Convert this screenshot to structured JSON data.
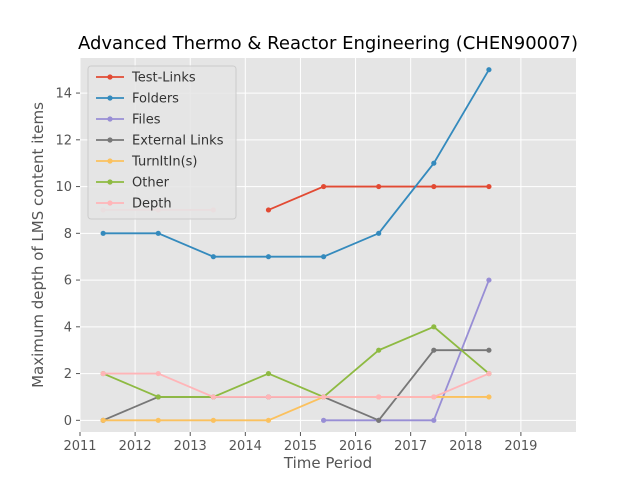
{
  "chart_data": {
    "type": "line",
    "title": "Advanced Thermo & Reactor Engineering (CHEN90007)",
    "xlabel": "Time Period",
    "ylabel": "Maximum depth of LMS content items",
    "xlim": [
      2011,
      2020
    ],
    "ylim": [
      -0.5,
      15.5
    ],
    "x_ticks": [
      "2011",
      "2012",
      "2013",
      "2014",
      "2015",
      "2016",
      "2017",
      "2018",
      "2019"
    ],
    "y_ticks": [
      "0",
      "2",
      "4",
      "6",
      "8",
      "10",
      "12",
      "14"
    ],
    "grid": true,
    "legend_position": "top-left",
    "x": [
      2011.42,
      2012.42,
      2013.42,
      2014.42,
      2015.42,
      2016.42,
      2017.42,
      2018.42
    ],
    "series": [
      {
        "name": "Test-Links",
        "color": "#E24A33",
        "values": [
          null,
          null,
          null,
          9,
          10,
          10,
          10,
          10
        ]
      },
      {
        "name": "Folders",
        "color": "#348ABD",
        "values": [
          8,
          8,
          7,
          7,
          7,
          8,
          11,
          15
        ]
      },
      {
        "name": "Files",
        "color": "#988ED5",
        "values": [
          null,
          null,
          null,
          null,
          0,
          0,
          0,
          6
        ]
      },
      {
        "name": "External Links",
        "color": "#777777",
        "values": [
          0,
          1,
          1,
          1,
          1,
          0,
          3,
          3
        ]
      },
      {
        "name": "TurnItIn(s)",
        "color": "#FBC15E",
        "values": [
          0,
          0,
          0,
          0,
          1,
          1,
          1,
          1
        ]
      },
      {
        "name": "Other",
        "color": "#8EBA42",
        "values": [
          2,
          1,
          1,
          2,
          1,
          3,
          4,
          2
        ]
      },
      {
        "name": "Depth",
        "color": "#FFB5B8",
        "values": [
          2,
          2,
          1,
          1,
          1,
          1,
          1,
          2
        ]
      }
    ],
    "extra_marks": [
      {
        "series": "Depth",
        "color": "#FFB5B8",
        "points": [
          [
            2011.42,
            9
          ],
          [
            2012.42,
            9
          ],
          [
            2013.42,
            9
          ]
        ]
      }
    ]
  }
}
